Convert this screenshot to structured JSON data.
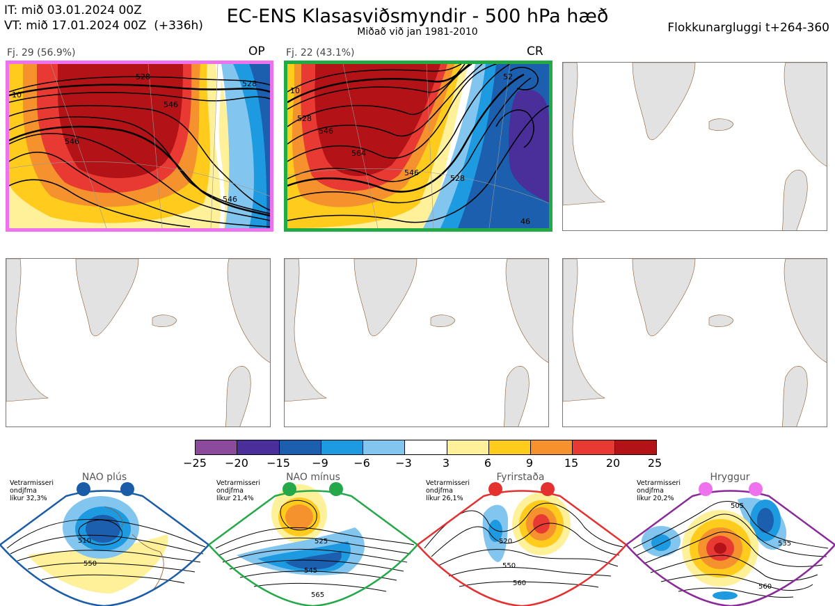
{
  "header": {
    "it_line": "IT: mið 03.01.2024 00Z",
    "vt_line": "VT: mið 17.01.2024 00Z  (+336h)",
    "title": "EC-ENS Klasasviðsmyndir - 500 hPa hæð",
    "subtitle": "Miðað við jan 1981-2010",
    "window": "Flokkunargluggi t+264-360"
  },
  "panels": [
    {
      "label": "Fj. 29 (56.9%)",
      "tag": "OP",
      "border_color": "#ee72ee",
      "contours": [
        "10",
        "528",
        "546",
        "528",
        "546",
        "546"
      ]
    },
    {
      "label": "Fj. 22 (43.1%)",
      "tag": "CR",
      "border_color": "#22aa44",
      "contours": [
        "10",
        "528",
        "546",
        "564",
        "546",
        "528",
        "52",
        "46"
      ]
    }
  ],
  "colorbar": {
    "ticks": [
      "−25",
      "−20",
      "−15",
      "−9",
      "−6",
      "−3",
      "3",
      "6",
      "9",
      "15",
      "20",
      "25"
    ],
    "colors": [
      "#8b4a9c",
      "#4a2f9a",
      "#1b5fae",
      "#1e9be0",
      "#82c6ef",
      "#ffffff",
      "#fff09a",
      "#ffcc1e",
      "#f5922e",
      "#e83a32",
      "#b31217"
    ]
  },
  "regimes": [
    {
      "title": "NAO plús",
      "note1": "Vetrarmisseri",
      "note2": "ondjfma",
      "note3": "líkur 32,3%",
      "color": "#1a5ca8",
      "labels": [
        "510",
        "550"
      ]
    },
    {
      "title": "NAO mínus",
      "note1": "Vetrarmisseri",
      "note2": "ondjfma",
      "note3": "líkur 21,4%",
      "color": "#25a84a",
      "labels": [
        "525",
        "545",
        "565"
      ]
    },
    {
      "title": "Fyrirstaða",
      "note1": "Vetrarmisseri",
      "note2": "ondjfma",
      "note3": "líkur 26,1%",
      "color": "#e53030",
      "labels": [
        "520",
        "550",
        "560"
      ]
    },
    {
      "title": "Hryggur",
      "note1": "Vetrarmisseri",
      "note2": "ondjfma",
      "note3": "líkur 20,2%",
      "color": "#8a2a9a",
      "labels": [
        "505",
        "535",
        "560"
      ]
    }
  ]
}
